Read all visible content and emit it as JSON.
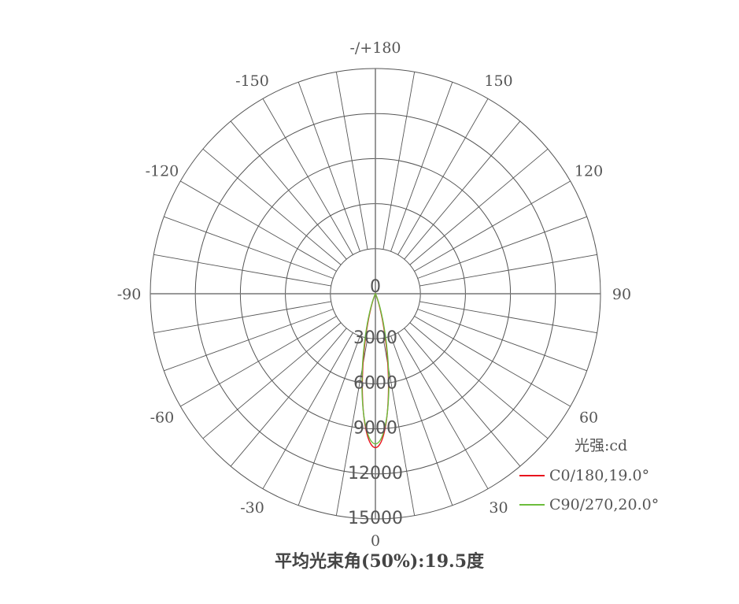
{
  "chart_data": {
    "type": "polar",
    "title": "平均光束角(50%):19.5度",
    "unit_label": "光强:cd",
    "angle_tick_labels": [
      {
        "angle": 0,
        "label": "0"
      },
      {
        "angle": 30,
        "label": "30"
      },
      {
        "angle": 60,
        "label": "60"
      },
      {
        "angle": 90,
        "label": "90"
      },
      {
        "angle": 120,
        "label": "120"
      },
      {
        "angle": 150,
        "label": "150"
      },
      {
        "angle": 180,
        "label": "-/+180"
      },
      {
        "angle": -150,
        "label": "-150"
      },
      {
        "angle": -120,
        "label": "-120"
      },
      {
        "angle": -90,
        "label": "-90"
      },
      {
        "angle": -60,
        "label": "-60"
      },
      {
        "angle": -30,
        "label": "-30"
      }
    ],
    "angle_grid_step": 10,
    "radial_ticks": [
      0,
      3000,
      6000,
      9000,
      12000,
      15000
    ],
    "radial_tick_labels": [
      "0",
      "3000",
      "6000",
      "9000",
      "12000",
      "15000"
    ],
    "rlim": [
      0,
      15000
    ],
    "legend_position": "bottom-right",
    "series": [
      {
        "name": "C0/180,19.0°",
        "color": "#e8141e",
        "angles": [
          -30,
          -25,
          -20,
          -17.5,
          -15,
          -12.5,
          -10,
          -7.5,
          -5,
          -2.5,
          0,
          2.5,
          5,
          7.5,
          10,
          12.5,
          15,
          17.5,
          20,
          25,
          30
        ],
        "values": [
          0,
          84,
          475,
          975,
          1820,
          3090,
          4760,
          6650,
          8460,
          9770,
          10250,
          9770,
          8460,
          6650,
          4760,
          3090,
          1820,
          975,
          475,
          84,
          0
        ]
      },
      {
        "name": "C90/270,20.0°",
        "color": "#6cbd3c",
        "angles": [
          -30,
          -25,
          -20,
          -17.5,
          -15,
          -12.5,
          -10,
          -7.5,
          -5,
          -2.5,
          0,
          2.5,
          5,
          7.5,
          10,
          12.5,
          15,
          17.5,
          20,
          25,
          30
        ],
        "values": [
          0,
          130,
          625,
          1200,
          2100,
          3390,
          5000,
          6770,
          8410,
          9580,
          10000,
          9580,
          8410,
          6770,
          5000,
          3390,
          2100,
          1200,
          625,
          130,
          0
        ]
      }
    ]
  }
}
